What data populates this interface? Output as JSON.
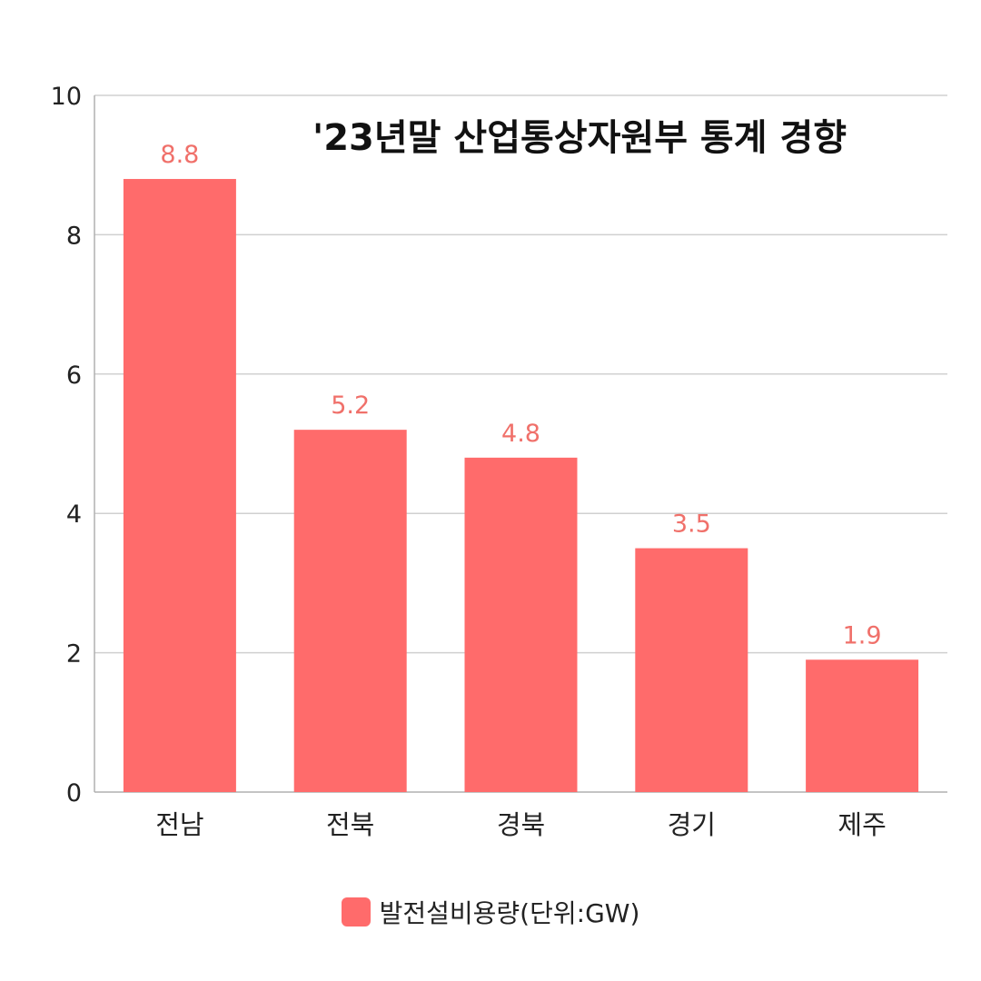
{
  "chart_data": {
    "type": "bar",
    "title": "'23년말 산업통상자원부 통계 경향",
    "categories": [
      "전남",
      "전북",
      "경북",
      "경기",
      "제주"
    ],
    "series": [
      {
        "name": "발전설비용량(단위:GW)",
        "values": [
          8.8,
          5.2,
          4.8,
          3.5,
          1.9
        ],
        "color": "#ff6b6b"
      }
    ],
    "data_labels": [
      "8.8",
      "5.2",
      "4.8",
      "3.5",
      "1.9"
    ],
    "ylim": [
      0,
      10
    ],
    "yticks": [
      "0",
      "2",
      "4",
      "6",
      "8",
      "10"
    ],
    "xlabel": "",
    "ylabel": "",
    "grid": true,
    "legend_position": "bottom",
    "colors": {
      "bar": "#ff6b6b",
      "label": "#f0706a",
      "grid": "#d0d0d0",
      "axis": "#b0b0b0"
    }
  }
}
